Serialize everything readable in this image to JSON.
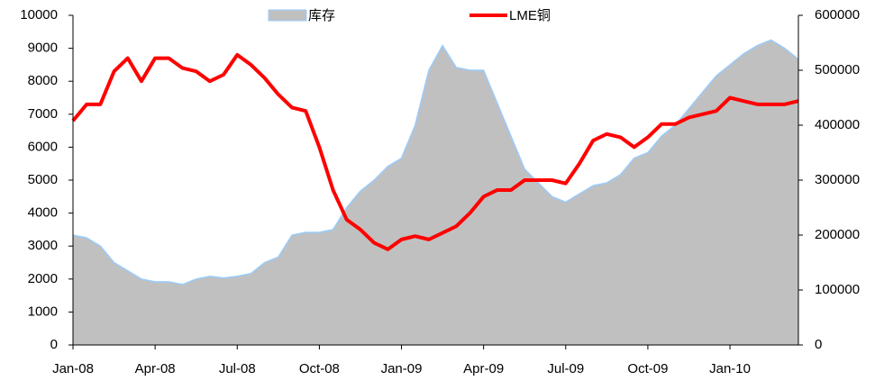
{
  "chart_data": {
    "type": "line",
    "categories": [
      "Jan-08",
      null,
      null,
      null,
      null,
      null,
      "Apr-08",
      null,
      null,
      null,
      null,
      null,
      "Jul-08",
      null,
      null,
      null,
      null,
      null,
      "Oct-08",
      null,
      null,
      null,
      null,
      null,
      "Jan-09",
      null,
      null,
      null,
      null,
      null,
      "Apr-09",
      null,
      null,
      null,
      null,
      null,
      "Jul-09",
      null,
      null,
      null,
      null,
      null,
      "Oct-09",
      null,
      null,
      null,
      null,
      null,
      "Jan-10",
      null,
      null,
      null,
      null,
      null
    ],
    "series": [
      {
        "name": "库存",
        "type": "area",
        "axis": "y2",
        "color": "#c0c0c0",
        "edge_color": "#99ccff",
        "values": [
          200000,
          195000,
          180000,
          150000,
          135000,
          120000,
          115000,
          115000,
          110000,
          120000,
          125000,
          122000,
          125000,
          130000,
          150000,
          160000,
          200000,
          205000,
          205000,
          210000,
          250000,
          280000,
          300000,
          325000,
          340000,
          400000,
          500000,
          545000,
          505000,
          500000,
          500000,
          440000,
          380000,
          320000,
          295000,
          270000,
          260000,
          275000,
          290000,
          295000,
          310000,
          340000,
          350000,
          380000,
          400000,
          430000,
          460000,
          490000,
          510000,
          530000,
          545000,
          555000,
          540000,
          520000
        ]
      },
      {
        "name": "LME铜",
        "type": "line",
        "color": "#ff0000",
        "values": [
          6800,
          7300,
          7300,
          8300,
          8700,
          8000,
          8700,
          8700,
          8400,
          8300,
          8000,
          8200,
          8800,
          8500,
          8100,
          7600,
          7200,
          7100,
          6000,
          4700,
          3800,
          3500,
          3100,
          2900,
          3200,
          3300,
          3200,
          3400,
          3600,
          4000,
          4500,
          4700,
          4700,
          5000,
          5000,
          5000,
          4900,
          5500,
          6200,
          6400,
          6300,
          6000,
          6300,
          6700,
          6700,
          6900,
          7000,
          7100,
          7500,
          7400,
          7300,
          7300,
          7300,
          7400
        ]
      }
    ],
    "ylim": [
      0,
      10000
    ],
    "yticks": [
      0,
      1000,
      2000,
      3000,
      4000,
      5000,
      6000,
      7000,
      8000,
      9000,
      10000
    ],
    "y2lim": [
      0,
      600000
    ],
    "y2ticks": [
      0,
      100000,
      200000,
      300000,
      400000,
      500000,
      600000
    ],
    "grid": false,
    "legend": "top"
  }
}
